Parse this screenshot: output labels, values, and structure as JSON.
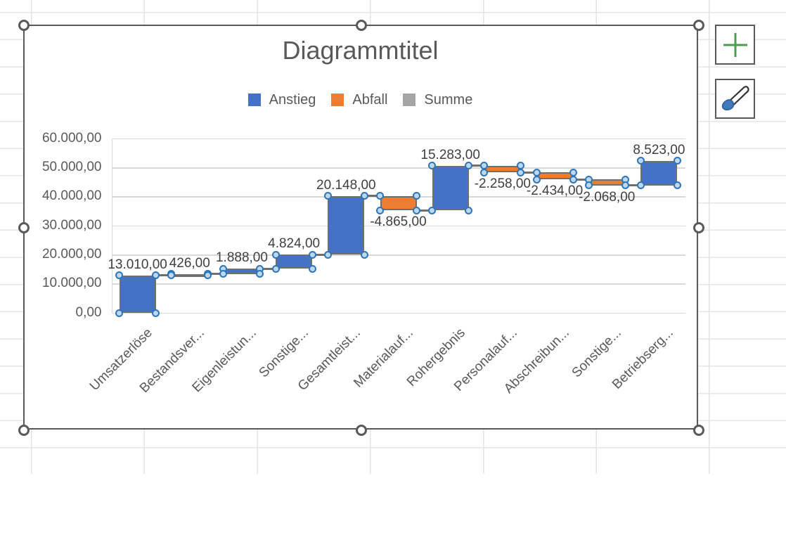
{
  "chart": {
    "title": "Diagrammtitel",
    "legend": [
      {
        "label": "Anstieg",
        "color": "#4472C4"
      },
      {
        "label": "Abfall",
        "color": "#ED7D31"
      },
      {
        "label": "Summe",
        "color": "#A5A5A5"
      }
    ],
    "y_axis": {
      "ticks": [
        "60.000,00",
        "50.000,00",
        "40.000,00",
        "30.000,00",
        "20.000,00",
        "10.000,00",
        "0,00"
      ]
    }
  },
  "chart_data": {
    "type": "bar",
    "subtype": "waterfall",
    "title": "Diagrammtitel",
    "categories": [
      "Umsatzerlöse",
      "Bestandsver...",
      "Eigenleistun...",
      "Sonstige...",
      "Gesamtleist...",
      "Materialauf...",
      "Rohergebnis",
      "Personalauf...",
      "Abschreibun...",
      "Sonstige...",
      "Betriebserg..."
    ],
    "values": [
      13010,
      426,
      1888,
      4824,
      20148,
      -4865,
      15283,
      -2258,
      -2434,
      -2068,
      8523
    ],
    "value_labels": [
      "13.010,00",
      "426,00",
      "1.888,00",
      "4.824,00",
      "20.148,00",
      "-4.865,00",
      "15.283,00",
      "-2.258,00",
      "-2.434,00",
      "-2.068,00",
      "8.523,00"
    ],
    "series_colors": {
      "increase": "#4472C4",
      "decrease": "#ED7D31",
      "total": "#A5A5A5"
    },
    "legend_entries": [
      "Anstieg",
      "Abfall",
      "Summe"
    ],
    "ylim": [
      0,
      60000
    ],
    "ytick_step": 10000,
    "grid": true,
    "legend_position": "top"
  },
  "side_buttons": [
    {
      "icon": "plus-icon",
      "color": "#4E9D52"
    },
    {
      "icon": "paintbrush-icon",
      "color": "#2E75B6"
    }
  ],
  "ui_colors": {
    "selection_border": "#595959",
    "point_handle_fill": "#BDD7EE",
    "point_handle_border": "#2E75B6",
    "connector": "#6F6F6F"
  }
}
